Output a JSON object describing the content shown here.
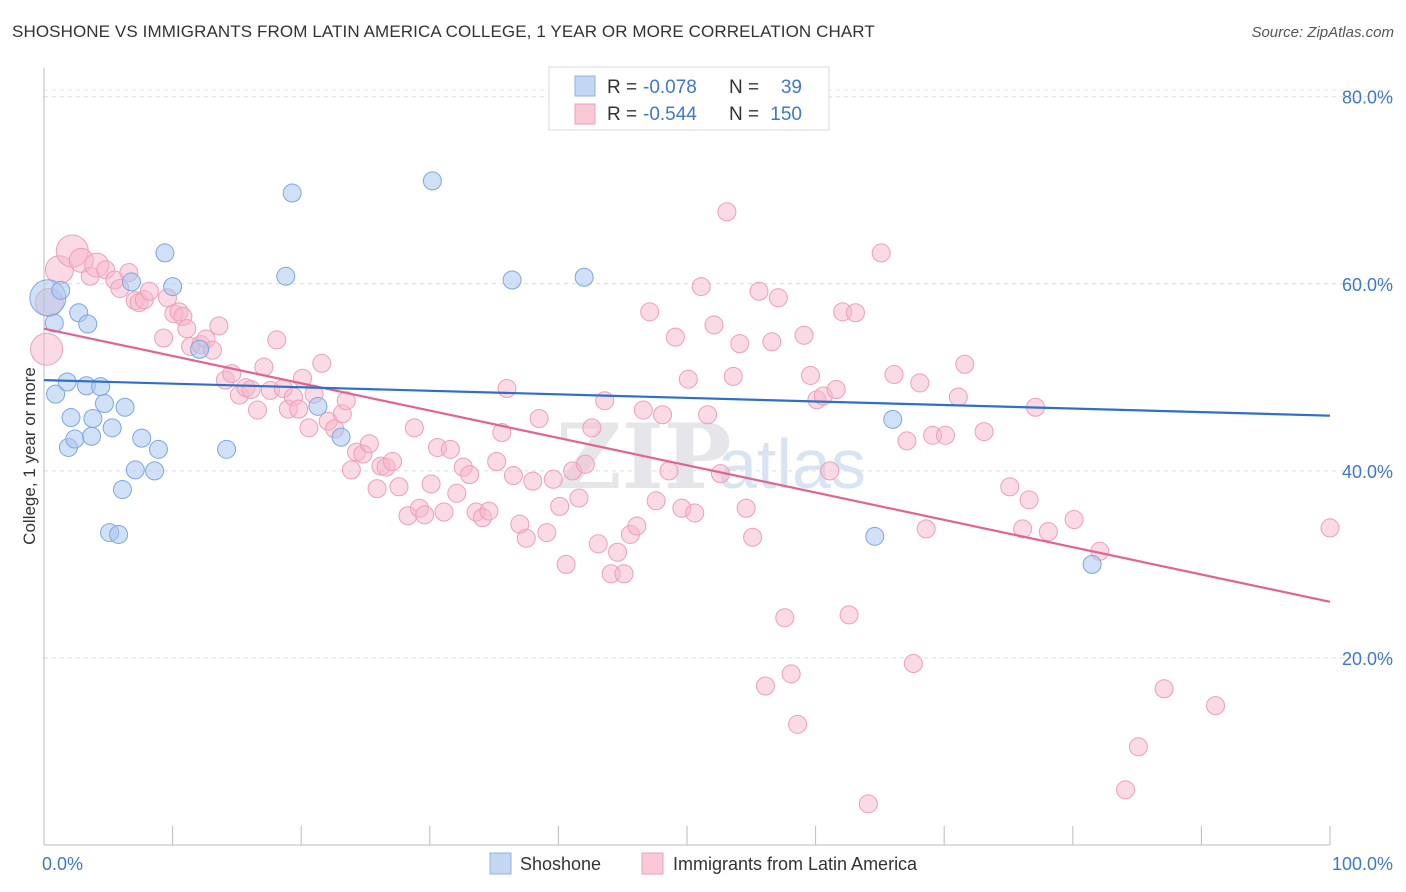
{
  "title": "SHOSHONE VS IMMIGRANTS FROM LATIN AMERICA COLLEGE, 1 YEAR OR MORE CORRELATION CHART",
  "source": "Source: ZipAtlas.com",
  "watermark": {
    "zip": "ZIP",
    "atlas": "atlas"
  },
  "legend": {
    "rows": [
      {
        "r_label": "R =",
        "r_value": "-0.078",
        "n_label": "N =",
        "n_value": "39"
      },
      {
        "r_label": "R =",
        "r_value": "-0.544",
        "n_label": "N =",
        "n_value": "150"
      }
    ]
  },
  "chart_data": {
    "type": "scatter",
    "xlabel": "",
    "ylabel": "College, 1 year or more",
    "xlim": [
      0,
      100
    ],
    "ylim": [
      0,
      82
    ],
    "y_ticks": [
      20,
      40,
      60,
      80
    ],
    "y_tick_labels": [
      "20.0%",
      "40.0%",
      "60.0%",
      "80.0%"
    ],
    "x_tick_labels": [
      "0.0%",
      "100.0%"
    ],
    "grid": true,
    "colors": {
      "shoshone": "#a9c7ef",
      "shoshone_line": "#2f6fc9",
      "latin": "#f6b6c9",
      "latin_line": "#e0648f"
    },
    "series": [
      {
        "name": "Shoshone",
        "trend": {
          "x": [
            0,
            100
          ],
          "y": [
            49.7,
            45.9
          ]
        },
        "points": [
          [
            0.3,
            58.5,
            18
          ],
          [
            0.8,
            55.8,
            9
          ],
          [
            0.9,
            48.2,
            9
          ],
          [
            1.3,
            59.3,
            9
          ],
          [
            1.8,
            49.5,
            9
          ],
          [
            1.9,
            42.5,
            9
          ],
          [
            2.1,
            45.7,
            9
          ],
          [
            2.4,
            43.4,
            9
          ],
          [
            2.7,
            56.9,
            9
          ],
          [
            3.3,
            49.1,
            9
          ],
          [
            3.4,
            55.7,
            9
          ],
          [
            3.7,
            43.7,
            9
          ],
          [
            3.8,
            45.6,
            9
          ],
          [
            4.4,
            49.0,
            9
          ],
          [
            4.7,
            47.2,
            9
          ],
          [
            5.1,
            33.4,
            9
          ],
          [
            5.3,
            44.6,
            9
          ],
          [
            5.8,
            33.2,
            9
          ],
          [
            6.1,
            38.0,
            9
          ],
          [
            6.3,
            46.8,
            9
          ],
          [
            6.8,
            60.2,
            9
          ],
          [
            7.1,
            40.1,
            9
          ],
          [
            7.6,
            43.5,
            9
          ],
          [
            8.6,
            40.0,
            9
          ],
          [
            8.9,
            42.3,
            9
          ],
          [
            9.4,
            63.3,
            9
          ],
          [
            10.0,
            59.7,
            9
          ],
          [
            12.1,
            53.0,
            9
          ],
          [
            14.2,
            42.3,
            9
          ],
          [
            18.8,
            60.8,
            9
          ],
          [
            19.3,
            69.7,
            9
          ],
          [
            21.3,
            46.9,
            9
          ],
          [
            23.1,
            43.6,
            9
          ],
          [
            30.2,
            71.0,
            9
          ],
          [
            36.4,
            60.4,
            9
          ],
          [
            42.0,
            60.7,
            9
          ],
          [
            64.6,
            33.0,
            9
          ],
          [
            66.0,
            45.5,
            9
          ],
          [
            81.5,
            30.0,
            9
          ]
        ]
      },
      {
        "name": "Immigrants from Latin America",
        "trend": {
          "x": [
            0,
            100
          ],
          "y": [
            55.2,
            26.0
          ]
        },
        "points": [
          [
            0.2,
            53.0,
            16
          ],
          [
            0.4,
            58.0,
            14
          ],
          [
            1.2,
            61.5,
            14
          ],
          [
            2.2,
            63.5,
            16
          ],
          [
            2.9,
            62.5,
            12
          ],
          [
            3.6,
            60.8,
            9
          ],
          [
            4.1,
            62.0,
            12
          ],
          [
            4.8,
            61.5,
            9
          ],
          [
            5.5,
            60.4,
            9
          ],
          [
            5.9,
            59.5,
            9
          ],
          [
            6.6,
            61.2,
            9
          ],
          [
            7.1,
            58.2,
            9
          ],
          [
            7.4,
            58.0,
            9
          ],
          [
            7.8,
            58.3,
            9
          ],
          [
            8.2,
            59.2,
            9
          ],
          [
            9.3,
            54.2,
            9
          ],
          [
            9.6,
            58.5,
            9
          ],
          [
            10.1,
            56.8,
            9
          ],
          [
            10.5,
            57.0,
            9
          ],
          [
            10.8,
            56.5,
            9
          ],
          [
            11.1,
            55.2,
            9
          ],
          [
            11.4,
            53.3,
            9
          ],
          [
            12.2,
            53.5,
            9
          ],
          [
            12.6,
            54.1,
            9
          ],
          [
            13.1,
            52.9,
            9
          ],
          [
            13.6,
            55.5,
            9
          ],
          [
            14.1,
            49.7,
            9
          ],
          [
            14.6,
            50.4,
            9
          ],
          [
            15.2,
            48.1,
            9
          ],
          [
            15.7,
            48.9,
            9
          ],
          [
            16.1,
            48.7,
            9
          ],
          [
            16.6,
            46.5,
            9
          ],
          [
            17.1,
            51.1,
            9
          ],
          [
            17.6,
            48.6,
            9
          ],
          [
            18.1,
            54.0,
            9
          ],
          [
            18.6,
            48.8,
            9
          ],
          [
            19.0,
            46.6,
            9
          ],
          [
            19.4,
            47.9,
            9
          ],
          [
            19.8,
            46.6,
            9
          ],
          [
            20.1,
            49.9,
            9
          ],
          [
            20.6,
            44.6,
            9
          ],
          [
            21.0,
            48.2,
            9
          ],
          [
            21.6,
            51.5,
            9
          ],
          [
            22.1,
            45.3,
            9
          ],
          [
            22.6,
            44.5,
            9
          ],
          [
            23.2,
            46.1,
            9
          ],
          [
            23.5,
            47.5,
            9
          ],
          [
            23.9,
            40.1,
            9
          ],
          [
            24.3,
            42.0,
            9
          ],
          [
            24.8,
            41.8,
            9
          ],
          [
            25.3,
            42.9,
            9
          ],
          [
            25.9,
            38.1,
            9
          ],
          [
            26.2,
            40.5,
            9
          ],
          [
            26.6,
            40.4,
            9
          ],
          [
            27.1,
            41.0,
            9
          ],
          [
            27.6,
            38.3,
            9
          ],
          [
            28.3,
            35.2,
            9
          ],
          [
            28.8,
            44.6,
            9
          ],
          [
            29.2,
            36.0,
            9
          ],
          [
            29.6,
            35.3,
            9
          ],
          [
            30.1,
            38.6,
            9
          ],
          [
            30.6,
            42.5,
            9
          ],
          [
            31.1,
            35.6,
            9
          ],
          [
            31.6,
            42.3,
            9
          ],
          [
            32.1,
            37.6,
            9
          ],
          [
            32.6,
            40.4,
            9
          ],
          [
            33.1,
            39.6,
            9
          ],
          [
            33.6,
            35.6,
            9
          ],
          [
            34.1,
            35.0,
            9
          ],
          [
            34.6,
            35.7,
            9
          ],
          [
            35.2,
            41.0,
            9
          ],
          [
            35.6,
            44.1,
            9
          ],
          [
            36.0,
            48.8,
            9
          ],
          [
            36.5,
            39.5,
            9
          ],
          [
            37.0,
            34.3,
            9
          ],
          [
            37.5,
            32.8,
            9
          ],
          [
            38.0,
            38.9,
            9
          ],
          [
            38.5,
            45.6,
            9
          ],
          [
            39.1,
            33.4,
            9
          ],
          [
            39.6,
            39.1,
            9
          ],
          [
            40.1,
            36.2,
            9
          ],
          [
            40.6,
            30.0,
            9
          ],
          [
            41.1,
            40.0,
            9
          ],
          [
            41.6,
            37.1,
            9
          ],
          [
            42.1,
            40.7,
            9
          ],
          [
            42.6,
            44.6,
            9
          ],
          [
            43.1,
            32.2,
            9
          ],
          [
            43.6,
            47.5,
            9
          ],
          [
            44.1,
            29.0,
            9
          ],
          [
            44.6,
            31.3,
            9
          ],
          [
            45.1,
            29.0,
            9
          ],
          [
            45.6,
            33.2,
            9
          ],
          [
            46.1,
            34.1,
            9
          ],
          [
            46.6,
            46.5,
            9
          ],
          [
            47.1,
            57.0,
            9
          ],
          [
            47.6,
            36.8,
            9
          ],
          [
            48.1,
            46.0,
            9
          ],
          [
            48.6,
            40.0,
            9
          ],
          [
            49.1,
            54.3,
            9
          ],
          [
            49.6,
            36.0,
            9
          ],
          [
            50.1,
            49.8,
            9
          ],
          [
            50.6,
            35.5,
            9
          ],
          [
            51.1,
            59.7,
            9
          ],
          [
            51.6,
            46.0,
            9
          ],
          [
            52.1,
            55.6,
            9
          ],
          [
            52.6,
            39.7,
            9
          ],
          [
            53.1,
            67.7,
            9
          ],
          [
            53.6,
            50.1,
            9
          ],
          [
            54.1,
            53.6,
            9
          ],
          [
            54.6,
            36.0,
            9
          ],
          [
            55.1,
            32.9,
            9
          ],
          [
            55.6,
            59.2,
            9
          ],
          [
            56.1,
            17.0,
            9
          ],
          [
            56.6,
            53.8,
            9
          ],
          [
            57.1,
            58.5,
            9
          ],
          [
            57.6,
            24.3,
            9
          ],
          [
            58.1,
            18.3,
            9
          ],
          [
            58.6,
            12.9,
            9
          ],
          [
            59.1,
            54.5,
            9
          ],
          [
            59.6,
            50.2,
            9
          ],
          [
            60.1,
            47.6,
            9
          ],
          [
            60.6,
            48.0,
            9
          ],
          [
            61.1,
            40.0,
            9
          ],
          [
            61.6,
            48.7,
            9
          ],
          [
            62.1,
            57.0,
            9
          ],
          [
            62.6,
            24.6,
            9
          ],
          [
            63.1,
            56.9,
            9
          ],
          [
            64.1,
            4.4,
            9
          ],
          [
            65.1,
            63.3,
            9
          ],
          [
            66.1,
            50.3,
            9
          ],
          [
            67.1,
            43.2,
            9
          ],
          [
            67.6,
            19.4,
            9
          ],
          [
            68.1,
            49.4,
            9
          ],
          [
            68.6,
            33.8,
            9
          ],
          [
            69.1,
            43.8,
            9
          ],
          [
            70.1,
            43.8,
            9
          ],
          [
            71.1,
            47.9,
            9
          ],
          [
            71.6,
            51.4,
            9
          ],
          [
            73.1,
            44.2,
            9
          ],
          [
            75.1,
            38.3,
            9
          ],
          [
            76.1,
            33.8,
            9
          ],
          [
            76.6,
            36.9,
            9
          ],
          [
            77.1,
            46.8,
            9
          ],
          [
            78.1,
            33.5,
            9
          ],
          [
            80.1,
            34.8,
            9
          ],
          [
            82.1,
            31.4,
            9
          ],
          [
            84.1,
            5.9,
            9
          ],
          [
            85.1,
            10.5,
            9
          ],
          [
            87.1,
            16.7,
            9
          ],
          [
            91.1,
            14.9,
            9
          ],
          [
            100.0,
            33.9,
            9
          ]
        ]
      }
    ]
  },
  "bottom_legend": [
    {
      "label": "Shoshone"
    },
    {
      "label": "Immigrants from Latin America"
    }
  ]
}
